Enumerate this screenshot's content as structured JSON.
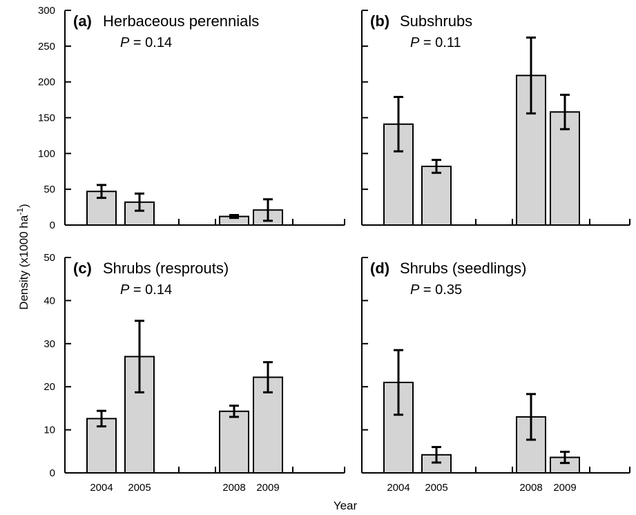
{
  "figure": {
    "ylabel": "Density (x1000 ha",
    "ylabel_sup": "-1",
    "ylabel_close": ")",
    "xlabel": "Year"
  },
  "chart_data": [
    {
      "type": "bar",
      "panel": "(a)",
      "title": "Herbaceous perennials",
      "p_label": "P",
      "p_value": "= 0.14",
      "categories": [
        "2004",
        "2005",
        "2008",
        "2009"
      ],
      "values": [
        47,
        32,
        12,
        21
      ],
      "errors": [
        9,
        12,
        2,
        15
      ],
      "ylim": [
        0,
        300
      ],
      "yticks": [
        "0",
        "50",
        "100",
        "150",
        "200",
        "250",
        "300"
      ]
    },
    {
      "type": "bar",
      "panel": "(b)",
      "title": "Subshrubs",
      "p_label": "P",
      "p_value": "= 0.11",
      "categories": [
        "2004",
        "2005",
        "2008",
        "2009"
      ],
      "values": [
        141,
        82,
        209,
        158
      ],
      "errors": [
        38,
        9,
        53,
        24
      ],
      "ylim": [
        0,
        300
      ],
      "yticks": []
    },
    {
      "type": "bar",
      "panel": "(c)",
      "title": "Shrubs (resprouts)",
      "p_label": "P",
      "p_value": "= 0.14",
      "categories": [
        "2004",
        "2005",
        "2008",
        "2009"
      ],
      "values": [
        12.6,
        27,
        14.3,
        22.2
      ],
      "errors": [
        1.8,
        8.3,
        1.3,
        3.5
      ],
      "ylim": [
        0,
        50
      ],
      "yticks": [
        "0",
        "10",
        "20",
        "30",
        "40",
        "50"
      ]
    },
    {
      "type": "bar",
      "panel": "(d)",
      "title": "Shrubs (seedlings)",
      "p_label": "P",
      "p_value": "= 0.35",
      "categories": [
        "2004",
        "2005",
        "2008",
        "2009"
      ],
      "values": [
        21,
        4.2,
        13,
        3.6
      ],
      "errors": [
        7.5,
        1.8,
        5.3,
        1.3
      ],
      "ylim": [
        0,
        50
      ],
      "yticks": []
    }
  ],
  "colors": {
    "bar_fill": "#d4d4d4",
    "stroke": "#000000"
  }
}
